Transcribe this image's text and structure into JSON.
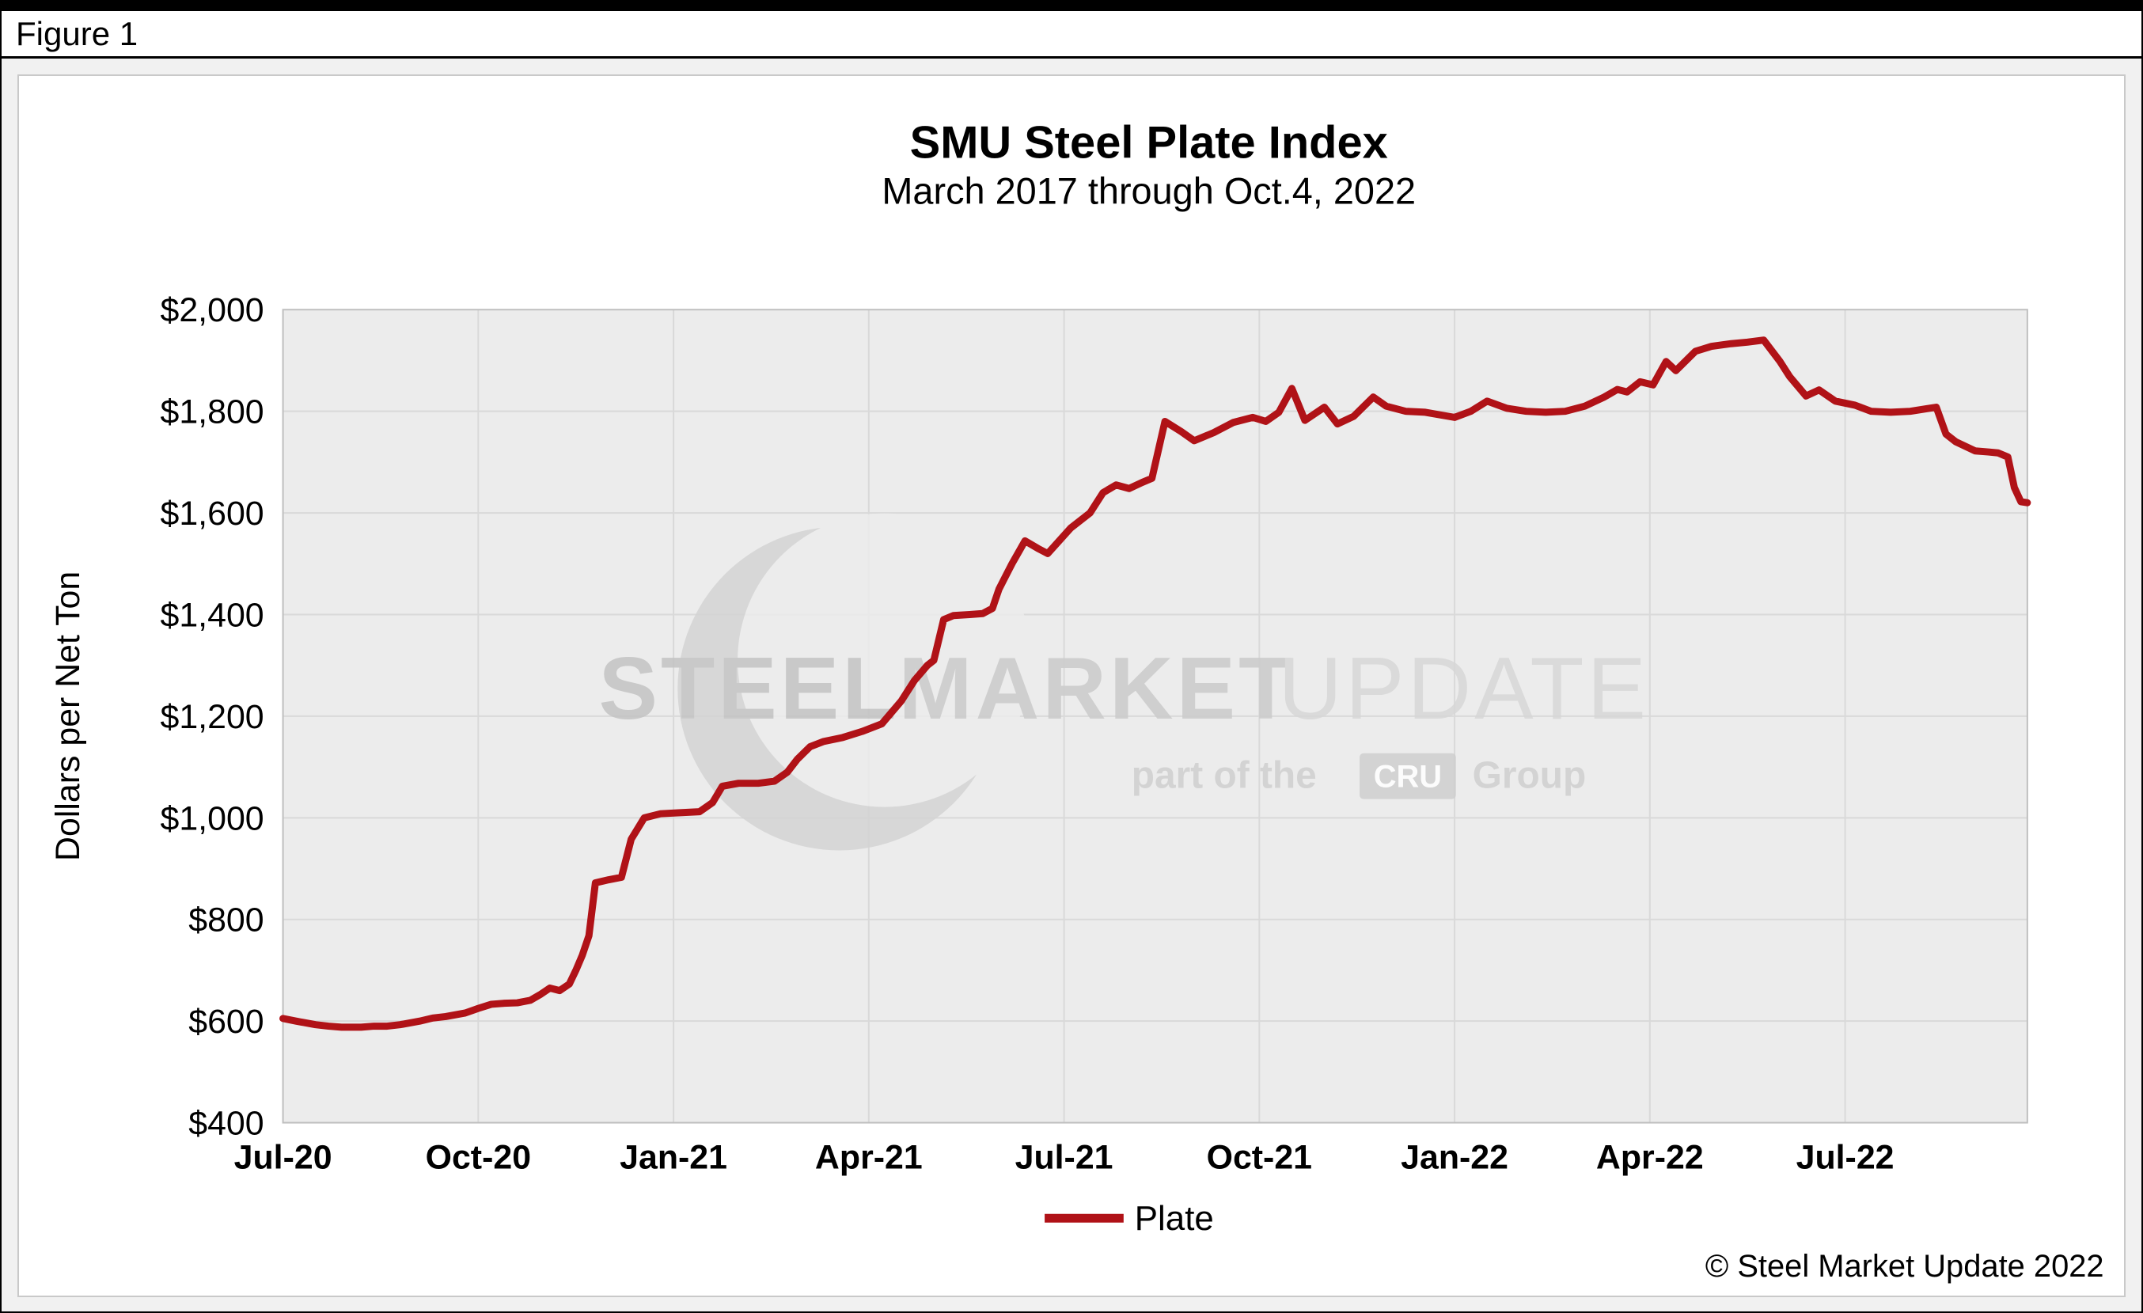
{
  "figure": {
    "label": "Figure 1"
  },
  "chart": {
    "title": "SMU Steel Plate Index",
    "subtitle": "March 2017 through Oct.4, 2022",
    "y_axis_title": "Dollars per Net Ton",
    "legend_label": "Plate",
    "copyright": "© Steel Market Update 2022",
    "line_color": "#B01217"
  },
  "watermark": {
    "word1": "STEEL",
    "word2": "MARKET",
    "word3": "UPDATE",
    "sub_prefix": "part of the",
    "sub_box": "CRU",
    "sub_suffix": "Group"
  },
  "chart_data": {
    "type": "line",
    "title": "SMU Steel Plate Index",
    "subtitle": "March 2017 through Oct.4, 2022",
    "ylabel": "Dollars per Net Ton",
    "xlabel": "",
    "x_unit": "months since Jul-2020 (ticks every 3 months)",
    "xlim": [
      0,
      26.8
    ],
    "ylim": [
      400,
      2000
    ],
    "grid": true,
    "legend_position": "bottom",
    "plot_bg": "#ECECEC",
    "grid_color": "#D9D9D9",
    "x_ticks": [
      {
        "m": 0,
        "label": "Jul-20"
      },
      {
        "m": 3,
        "label": "Oct-20"
      },
      {
        "m": 6,
        "label": "Jan-21"
      },
      {
        "m": 9,
        "label": "Apr-21"
      },
      {
        "m": 12,
        "label": "Jul-21"
      },
      {
        "m": 15,
        "label": "Oct-21"
      },
      {
        "m": 18,
        "label": "Jan-22"
      },
      {
        "m": 21,
        "label": "Apr-22"
      },
      {
        "m": 24,
        "label": "Jul-22"
      }
    ],
    "y_ticks": [
      {
        "v": 400,
        "label": "$400"
      },
      {
        "v": 600,
        "label": "$600"
      },
      {
        "v": 800,
        "label": "$800"
      },
      {
        "v": 1000,
        "label": "$1,000"
      },
      {
        "v": 1200,
        "label": "$1,200"
      },
      {
        "v": 1400,
        "label": "$1,400"
      },
      {
        "v": 1600,
        "label": "$1,600"
      },
      {
        "v": 1800,
        "label": "$1,800"
      },
      {
        "v": 2000,
        "label": "$2,000"
      }
    ],
    "series": [
      {
        "name": "Plate",
        "color": "#B01217",
        "points": [
          [
            0,
            605
          ],
          [
            0.2,
            600
          ],
          [
            0.5,
            593
          ],
          [
            0.7,
            590
          ],
          [
            0.9,
            588
          ],
          [
            1.2,
            588
          ],
          [
            1.4,
            590
          ],
          [
            1.6,
            590
          ],
          [
            1.8,
            593
          ],
          [
            2.1,
            600
          ],
          [
            2.3,
            606
          ],
          [
            2.5,
            609
          ],
          [
            2.8,
            616
          ],
          [
            3,
            625
          ],
          [
            3.2,
            633
          ],
          [
            3.4,
            635
          ],
          [
            3.6,
            636
          ],
          [
            3.8,
            641
          ],
          [
            3.95,
            652
          ],
          [
            4.1,
            665
          ],
          [
            4.25,
            660
          ],
          [
            4.4,
            673
          ],
          [
            4.5,
            700
          ],
          [
            4.6,
            730
          ],
          [
            4.7,
            768
          ],
          [
            4.8,
            872
          ],
          [
            5,
            878
          ],
          [
            5.2,
            883
          ],
          [
            5.35,
            958
          ],
          [
            5.55,
            1000
          ],
          [
            5.8,
            1008
          ],
          [
            6.1,
            1010
          ],
          [
            6.4,
            1012
          ],
          [
            6.6,
            1030
          ],
          [
            6.75,
            1062
          ],
          [
            7,
            1068
          ],
          [
            7.3,
            1068
          ],
          [
            7.55,
            1072
          ],
          [
            7.75,
            1090
          ],
          [
            7.9,
            1115
          ],
          [
            8.1,
            1140
          ],
          [
            8.3,
            1150
          ],
          [
            8.6,
            1158
          ],
          [
            8.9,
            1170
          ],
          [
            9.2,
            1185
          ],
          [
            9.5,
            1230
          ],
          [
            9.7,
            1270
          ],
          [
            9.9,
            1300
          ],
          [
            10,
            1310
          ],
          [
            10.15,
            1390
          ],
          [
            10.3,
            1398
          ],
          [
            10.55,
            1400
          ],
          [
            10.75,
            1402
          ],
          [
            10.9,
            1412
          ],
          [
            11,
            1450
          ],
          [
            11.2,
            1500
          ],
          [
            11.4,
            1545
          ],
          [
            11.6,
            1530
          ],
          [
            11.75,
            1520
          ],
          [
            12.1,
            1570
          ],
          [
            12.4,
            1600
          ],
          [
            12.6,
            1640
          ],
          [
            12.8,
            1655
          ],
          [
            13,
            1648
          ],
          [
            13.2,
            1660
          ],
          [
            13.35,
            1668
          ],
          [
            13.55,
            1780
          ],
          [
            13.8,
            1760
          ],
          [
            14,
            1742
          ],
          [
            14.3,
            1758
          ],
          [
            14.6,
            1778
          ],
          [
            14.9,
            1788
          ],
          [
            15.1,
            1780
          ],
          [
            15.3,
            1798
          ],
          [
            15.5,
            1845
          ],
          [
            15.7,
            1782
          ],
          [
            16,
            1808
          ],
          [
            16.2,
            1775
          ],
          [
            16.45,
            1790
          ],
          [
            16.75,
            1828
          ],
          [
            16.95,
            1810
          ],
          [
            17.25,
            1800
          ],
          [
            17.55,
            1798
          ],
          [
            18,
            1788
          ],
          [
            18.25,
            1800
          ],
          [
            18.5,
            1820
          ],
          [
            18.8,
            1806
          ],
          [
            19.1,
            1800
          ],
          [
            19.4,
            1798
          ],
          [
            19.7,
            1800
          ],
          [
            20,
            1810
          ],
          [
            20.3,
            1828
          ],
          [
            20.5,
            1843
          ],
          [
            20.65,
            1838
          ],
          [
            20.85,
            1858
          ],
          [
            21.05,
            1852
          ],
          [
            21.25,
            1898
          ],
          [
            21.4,
            1880
          ],
          [
            21.7,
            1918
          ],
          [
            21.95,
            1928
          ],
          [
            22.25,
            1933
          ],
          [
            22.5,
            1936
          ],
          [
            22.75,
            1940
          ],
          [
            23,
            1898
          ],
          [
            23.15,
            1868
          ],
          [
            23.4,
            1830
          ],
          [
            23.6,
            1842
          ],
          [
            23.85,
            1820
          ],
          [
            24.15,
            1812
          ],
          [
            24.4,
            1800
          ],
          [
            24.7,
            1798
          ],
          [
            25,
            1800
          ],
          [
            25.25,
            1805
          ],
          [
            25.4,
            1808
          ],
          [
            25.55,
            1755
          ],
          [
            25.7,
            1740
          ],
          [
            26,
            1722
          ],
          [
            26.2,
            1720
          ],
          [
            26.35,
            1718
          ],
          [
            26.5,
            1710
          ],
          [
            26.6,
            1650
          ],
          [
            26.7,
            1622
          ],
          [
            26.8,
            1620
          ]
        ]
      }
    ]
  }
}
